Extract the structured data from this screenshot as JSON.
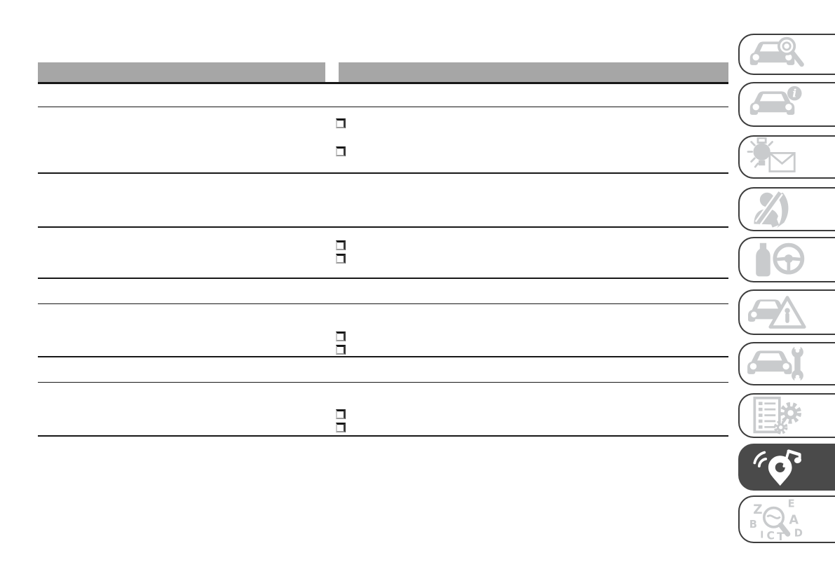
{
  "page": {
    "background": "#ffffff",
    "description": "owner handbook page, multimedia chapter, empty table"
  },
  "table": {
    "header": {
      "color": "#a6a6a6",
      "columns": [
        {
          "label": ""
        },
        {
          "label": ""
        }
      ]
    },
    "line_color": "#171717",
    "bullet_glyph": "❒",
    "rows": [
      {
        "name": "row-1",
        "bullet_count": 0
      },
      {
        "name": "row-2",
        "bullet_count": 2
      },
      {
        "name": "row-3",
        "bullet_count": 0
      },
      {
        "name": "row-4",
        "bullet_count": 2
      },
      {
        "name": "row-5",
        "bullet_count": 0
      },
      {
        "name": "row-6",
        "bullet_count": 2
      },
      {
        "name": "row-7",
        "bullet_count": 0
      },
      {
        "name": "row-8",
        "bullet_count": 2
      }
    ]
  },
  "sidebar": {
    "border_color": "#3c3c3c",
    "icon_color": "#c9cbcd",
    "active_background": "#4a4a4a",
    "active_icon_color": "#ffffff",
    "items": [
      {
        "id": "vehicle-overview",
        "icon": "car-magnifier-icon",
        "active": false
      },
      {
        "id": "vehicle-information",
        "icon": "car-info-icon",
        "active": false
      },
      {
        "id": "warning-lights-and-messages",
        "icon": "bulb-envelope-icon",
        "active": false
      },
      {
        "id": "safety-seatbelt",
        "icon": "occupant-seatbelt-icon",
        "active": false
      },
      {
        "id": "starting-and-driving",
        "icon": "bottle-steering-wheel-icon",
        "active": false
      },
      {
        "id": "in-an-emergency",
        "icon": "car-warning-triangle-icon",
        "active": false
      },
      {
        "id": "servicing-and-care",
        "icon": "car-wrench-icon",
        "active": false
      },
      {
        "id": "technical-data",
        "icon": "checklist-gears-icon",
        "active": false
      },
      {
        "id": "multimedia",
        "icon": "music-pin-wifi-icon",
        "active": true
      },
      {
        "id": "alphabetical-index",
        "icon": "letters-magnifier-icon",
        "active": false,
        "letters": [
          "Z",
          "E",
          "B",
          "A",
          "I",
          "C",
          "T",
          "D"
        ]
      }
    ]
  }
}
